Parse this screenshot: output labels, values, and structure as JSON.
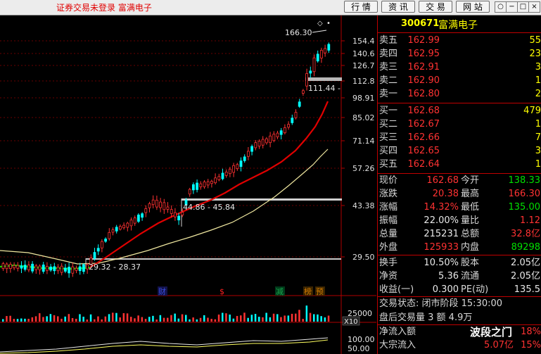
{
  "titlebar": {
    "title": "证券交易未登录  富满电子",
    "buttons": [
      "行 情",
      "资 讯",
      "交 易",
      "网 站"
    ],
    "window_controls": [
      "○",
      "−",
      "□",
      "×"
    ]
  },
  "chart": {
    "price_labels": [
      "154.4",
      "140.6",
      "126.7",
      "112.8",
      "98.91",
      "85.02",
      "71.14",
      "57.26",
      "43.38",
      "29.50"
    ],
    "high_annotation": "166.30",
    "gap_labels": [
      {
        "text": "111.44 -"
      },
      {
        "text": "44.86 - 45.84"
      },
      {
        "text": "29.32 - 28.37"
      }
    ],
    "event_markers": [
      {
        "text": "财",
        "color": "#3b4bd9"
      },
      {
        "text": "$",
        "color": "#ff2020"
      },
      {
        "text": "减",
        "color": "#19a34b"
      },
      {
        "text": "榜",
        "color": "#d07a00"
      },
      {
        "text": "预",
        "color": "#d07a00"
      }
    ],
    "volume_labels": [
      "25000",
      "X10"
    ],
    "indicator_labels": [
      "100.00",
      "50.00"
    ],
    "colors": {
      "up": "#ff3232",
      "down": "#00ffff",
      "ma_short": "#e00000",
      "ma_long": "#f0e8a0",
      "ma_green": "#00e000",
      "grid": "#8b0000"
    }
  },
  "panel": {
    "code": "300671",
    "name": "富满电子",
    "asks": [
      {
        "label": "卖五",
        "price": "162.99",
        "qty": "55"
      },
      {
        "label": "卖四",
        "price": "162.95",
        "qty": "23"
      },
      {
        "label": "卖三",
        "price": "162.91",
        "qty": "3"
      },
      {
        "label": "卖二",
        "price": "162.90",
        "qty": "1"
      },
      {
        "label": "卖一",
        "price": "162.80",
        "qty": "2"
      }
    ],
    "bids": [
      {
        "label": "买一",
        "price": "162.68",
        "qty": "479"
      },
      {
        "label": "买二",
        "price": "162.67",
        "qty": "1"
      },
      {
        "label": "买三",
        "price": "162.66",
        "qty": "7"
      },
      {
        "label": "买四",
        "price": "162.65",
        "qty": "3"
      },
      {
        "label": "买五",
        "price": "162.64",
        "qty": "1"
      }
    ],
    "stats": [
      {
        "l1": "现价",
        "v1": "162.68",
        "c1": "red",
        "l2": "今开",
        "v2": "138.33",
        "c2": "green"
      },
      {
        "l1": "涨跌",
        "v1": "20.38",
        "c1": "red",
        "l2": "最高",
        "v2": "166.30",
        "c2": "red"
      },
      {
        "l1": "涨幅",
        "v1": "14.32%",
        "c1": "red",
        "l2": "最低",
        "v2": "135.00",
        "c2": "green"
      },
      {
        "l1": "振幅",
        "v1": "22.00%",
        "c1": "white",
        "l2": "量比",
        "v2": "1.12",
        "c2": "red"
      },
      {
        "l1": "总量",
        "v1": "215231",
        "c1": "white",
        "l2": "总额",
        "v2": "32.8亿",
        "c2": "red"
      },
      {
        "l1": "外盘",
        "v1": "125933",
        "c1": "red",
        "l2": "内盘",
        "v2": "89298",
        "c2": "green"
      }
    ],
    "stats2": [
      {
        "l1": "换手",
        "v1": "10.50%",
        "l2": "股本",
        "v2": "2.05亿"
      },
      {
        "l1": "净资",
        "v1": "5.36",
        "l2": "流通",
        "v2": "2.05亿"
      },
      {
        "l1": "收益(一)",
        "v1": "0.300",
        "l2": "PE(动)",
        "v2": "135.5"
      }
    ],
    "trade_status": "交易状态: 闭市阶段 15:30:00",
    "after_hours": "盘后交易量 3 额 4.9万",
    "flows": [
      {
        "label": "净流入额",
        "v1": "",
        "v2": "18%"
      },
      {
        "label": "大宗流入",
        "v1": "5.07亿",
        "v2": "15%"
      }
    ]
  },
  "watermark": {
    "text": "波段之门"
  }
}
